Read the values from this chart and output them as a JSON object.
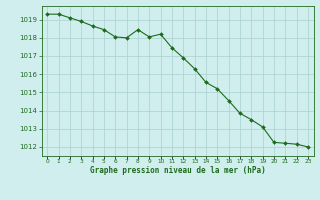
{
  "x": [
    0,
    1,
    2,
    3,
    4,
    5,
    6,
    7,
    8,
    9,
    10,
    11,
    12,
    13,
    14,
    15,
    16,
    17,
    18,
    19,
    20,
    21,
    22,
    23
  ],
  "y": [
    1019.3,
    1019.3,
    1019.1,
    1018.9,
    1018.65,
    1018.45,
    1018.05,
    1018.0,
    1018.45,
    1018.05,
    1018.2,
    1017.45,
    1016.9,
    1016.3,
    1015.55,
    1015.2,
    1014.55,
    1013.85,
    1013.5,
    1013.1,
    1012.25,
    1012.2,
    1012.15,
    1012.0
  ],
  "line_color": "#1e6b1e",
  "marker_color": "#1e6b1e",
  "bg_color": "#d0eeee",
  "grid_color": "#b0d4d4",
  "ylabel_ticks": [
    1012,
    1013,
    1014,
    1015,
    1016,
    1017,
    1018,
    1019
  ],
  "ylim": [
    1011.5,
    1019.75
  ],
  "xlim": [
    -0.5,
    23.5
  ],
  "xlabel": "Graphe pression niveau de la mer (hPa)",
  "xlabel_color": "#1e6b1e",
  "tick_color": "#1e6b1e",
  "xtick_labels": [
    "0",
    "1",
    "2",
    "3",
    "4",
    "5",
    "6",
    "7",
    "8",
    "9",
    "10",
    "11",
    "12",
    "13",
    "14",
    "15",
    "16",
    "17",
    "18",
    "19",
    "20",
    "21",
    "22",
    "23"
  ]
}
